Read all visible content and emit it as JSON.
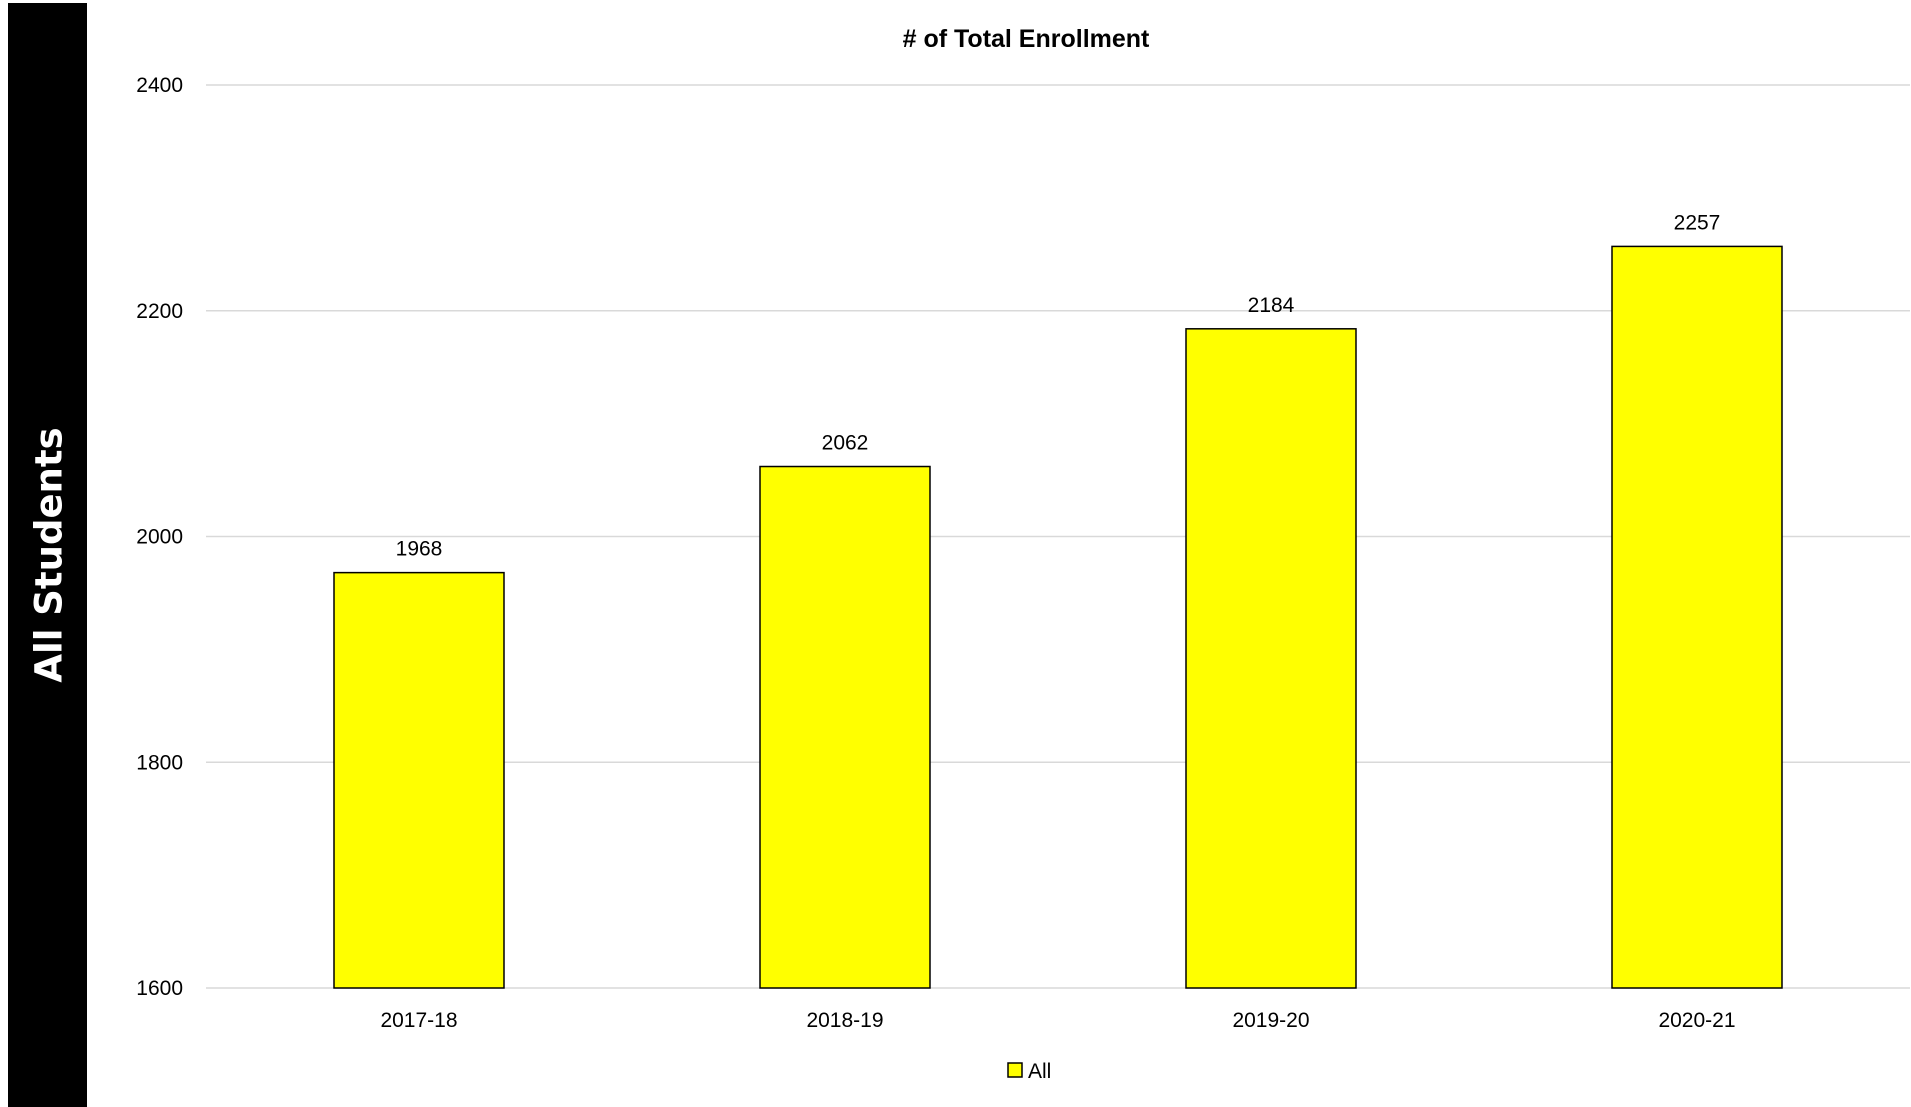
{
  "sidebar": {
    "label": "All Students"
  },
  "chart_data": {
    "type": "bar",
    "title": "# of Total Enrollment",
    "xlabel": "",
    "ylabel": "",
    "categories": [
      "2017-18",
      "2018-19",
      "2019-20",
      "2020-21"
    ],
    "series": [
      {
        "name": "All",
        "values": [
          1968,
          2062,
          2184,
          2257
        ],
        "color": "#ffff00",
        "border_color": "#000000"
      }
    ],
    "ylim": [
      1600,
      2400
    ],
    "yticks": [
      1600,
      1800,
      2000,
      2200,
      2400
    ],
    "grid": true,
    "grid_color": "#d9d9d9",
    "legend_position": "bottom",
    "data_labels": true
  }
}
